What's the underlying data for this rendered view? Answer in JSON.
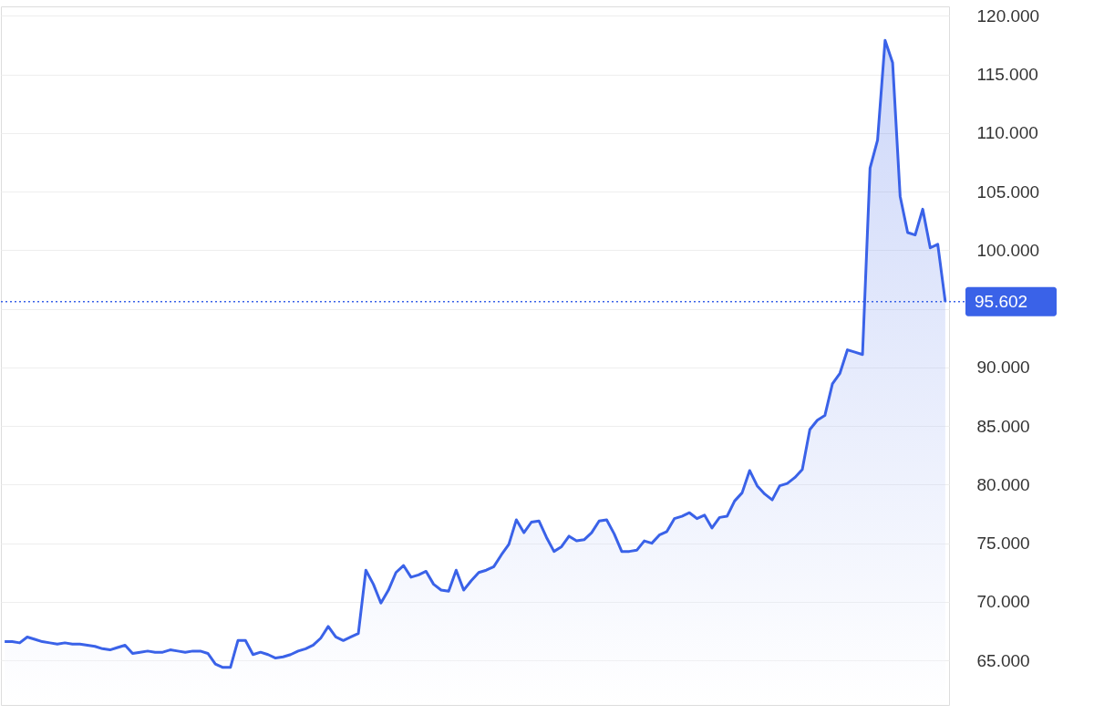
{
  "chart_data": {
    "type": "area",
    "categories": [
      null,
      null,
      null,
      null,
      null,
      null,
      null,
      null,
      null,
      null,
      null,
      null,
      null,
      null,
      null,
      null,
      null,
      null,
      null,
      null,
      null,
      null,
      null,
      null,
      null,
      null,
      null,
      null,
      null,
      null,
      null,
      null,
      null,
      null,
      null,
      null,
      null,
      null,
      null,
      null,
      null,
      null,
      null,
      null,
      null,
      null,
      null,
      null,
      null,
      null,
      null,
      null,
      null,
      null,
      null,
      null,
      null,
      null,
      null,
      null,
      null,
      null,
      null,
      null,
      null,
      null,
      null,
      null,
      null,
      null,
      null,
      null,
      null,
      null,
      null,
      null,
      null,
      null,
      null,
      null,
      null,
      null,
      null,
      null,
      null,
      null,
      null,
      null,
      null,
      null,
      null,
      null,
      null,
      null,
      null,
      null,
      null,
      null,
      null,
      null,
      null,
      null,
      null,
      null,
      null,
      null,
      null,
      null,
      null,
      null,
      null,
      null,
      null,
      null,
      null,
      null,
      null,
      null,
      null,
      null,
      null,
      null,
      null,
      null,
      null,
      null
    ],
    "series": [
      {
        "color": "#3a62e8",
        "values": [
          66.6,
          66.6,
          66.5,
          67.0,
          66.8,
          66.6,
          66.5,
          66.4,
          66.5,
          66.4,
          66.4,
          66.3,
          66.2,
          66.0,
          65.9,
          66.1,
          66.3,
          65.6,
          65.7,
          65.8,
          65.7,
          65.7,
          65.9,
          65.8,
          65.7,
          65.8,
          65.8,
          65.6,
          64.7,
          64.4,
          64.4,
          66.7,
          66.7,
          65.5,
          65.7,
          65.5,
          65.2,
          65.3,
          65.5,
          65.8,
          66.0,
          66.3,
          66.9,
          67.9,
          67.0,
          66.7,
          67.0,
          67.3,
          72.7,
          71.5,
          69.9,
          71.0,
          72.5,
          73.1,
          72.1,
          72.3,
          72.6,
          71.5,
          71.0,
          70.9,
          72.7,
          71.0,
          71.8,
          72.5,
          72.7,
          73.0,
          74.0,
          74.9,
          77.0,
          75.9,
          76.8,
          76.9,
          75.5,
          74.3,
          74.7,
          75.6,
          75.2,
          75.3,
          75.9,
          76.9,
          77.0,
          75.8,
          74.3,
          74.3,
          74.4,
          75.2,
          75.0,
          75.7,
          76.0,
          77.1,
          77.3,
          77.6,
          77.1,
          77.4,
          76.3,
          77.2,
          77.3,
          78.6,
          79.3,
          81.2,
          79.9,
          79.2,
          78.7,
          79.9,
          80.1,
          80.6,
          81.3,
          84.7,
          85.5,
          85.9,
          88.6,
          89.5,
          91.5,
          91.3,
          91.1,
          107.0,
          109.4,
          117.9,
          116.0,
          104.6,
          101.5,
          101.3,
          103.5,
          100.2,
          100.5,
          95.602
        ]
      }
    ],
    "ylim": [
      61.2,
      120.8
    ],
    "yticks": [
      {
        "value": 65,
        "label": "65.000"
      },
      {
        "value": 70,
        "label": "70.000"
      },
      {
        "value": 75,
        "label": "75.000"
      },
      {
        "value": 80,
        "label": "80.000"
      },
      {
        "value": 85,
        "label": "85.000"
      },
      {
        "value": 90,
        "label": "90.000"
      },
      {
        "value": 95,
        "label": null
      },
      {
        "value": 100,
        "label": "100.000"
      },
      {
        "value": 105,
        "label": "105.000"
      },
      {
        "value": 110,
        "label": "110.000"
      },
      {
        "value": 115,
        "label": "115.000"
      },
      {
        "value": 120,
        "label": "120.000"
      }
    ],
    "ref_lines": [
      {
        "axis": "y",
        "value": 95.602,
        "label": "95.602",
        "color": "#3a62e8",
        "line_style": "dotted"
      }
    ],
    "grid": "y",
    "marker": "none",
    "line_style": "solid"
  }
}
